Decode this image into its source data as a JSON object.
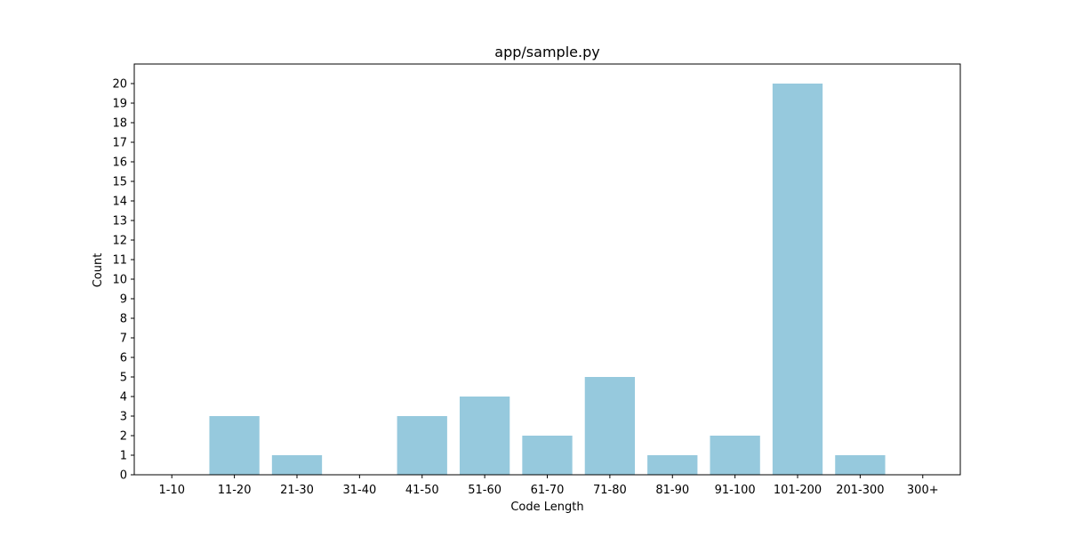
{
  "chart_data": {
    "type": "bar",
    "title": "app/sample.py",
    "xlabel": "Code Length",
    "ylabel": "Count",
    "categories": [
      "1-10",
      "11-20",
      "21-30",
      "31-40",
      "41-50",
      "51-60",
      "61-70",
      "71-80",
      "81-90",
      "91-100",
      "101-200",
      "201-300",
      "300+"
    ],
    "values": [
      0,
      3,
      1,
      0,
      3,
      4,
      2,
      5,
      1,
      2,
      20,
      1,
      0
    ],
    "ylim": [
      0,
      21
    ],
    "yticks": [
      0,
      1,
      2,
      3,
      4,
      5,
      6,
      7,
      8,
      9,
      10,
      11,
      12,
      13,
      14,
      15,
      16,
      17,
      18,
      19,
      20
    ],
    "grid": false,
    "bar_color": "#96c9dd"
  }
}
